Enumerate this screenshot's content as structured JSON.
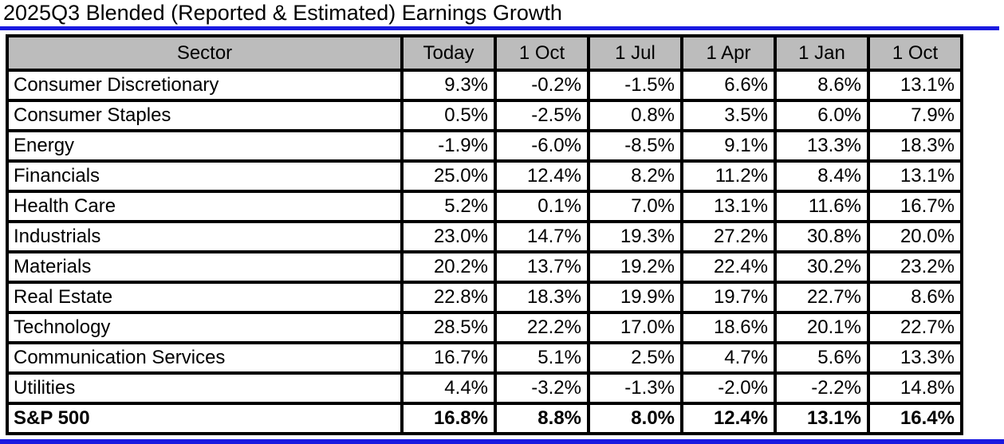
{
  "title": "2025Q3 Blended (Reported & Estimated) Earnings Growth",
  "colors": {
    "accent_blue": "#1a1ae0",
    "header_gray": "#bcbcbc",
    "border_black": "#000000",
    "background": "#ffffff"
  },
  "chart_data": {
    "type": "table",
    "title": "2025Q3 Blended (Reported & Estimated) Earnings Growth",
    "columns": [
      "Sector",
      "Today",
      "1 Oct",
      "1 Jul",
      "1 Apr",
      "1 Jan",
      "1 Oct"
    ],
    "rows": [
      {
        "sector": "Consumer Discretionary",
        "values": [
          "9.3%",
          "-0.2%",
          "-1.5%",
          "6.6%",
          "8.6%",
          "13.1%"
        ],
        "bold": false
      },
      {
        "sector": "Consumer Staples",
        "values": [
          "0.5%",
          "-2.5%",
          "0.8%",
          "3.5%",
          "6.0%",
          "7.9%"
        ],
        "bold": false
      },
      {
        "sector": "Energy",
        "values": [
          "-1.9%",
          "-6.0%",
          "-8.5%",
          "9.1%",
          "13.3%",
          "18.3%"
        ],
        "bold": false
      },
      {
        "sector": "Financials",
        "values": [
          "25.0%",
          "12.4%",
          "8.2%",
          "11.2%",
          "8.4%",
          "13.1%"
        ],
        "bold": false
      },
      {
        "sector": "Health Care",
        "values": [
          "5.2%",
          "0.1%",
          "7.0%",
          "13.1%",
          "11.6%",
          "16.7%"
        ],
        "bold": false
      },
      {
        "sector": "Industrials",
        "values": [
          "23.0%",
          "14.7%",
          "19.3%",
          "27.2%",
          "30.8%",
          "20.0%"
        ],
        "bold": false
      },
      {
        "sector": "Materials",
        "values": [
          "20.2%",
          "13.7%",
          "19.2%",
          "22.4%",
          "30.2%",
          "23.2%"
        ],
        "bold": false
      },
      {
        "sector": "Real Estate",
        "values": [
          "22.8%",
          "18.3%",
          "19.9%",
          "19.7%",
          "22.7%",
          "8.6%"
        ],
        "bold": false
      },
      {
        "sector": "Technology",
        "values": [
          "28.5%",
          "22.2%",
          "17.0%",
          "18.6%",
          "20.1%",
          "22.7%"
        ],
        "bold": false
      },
      {
        "sector": "Communication Services",
        "values": [
          "16.7%",
          "5.1%",
          "2.5%",
          "4.7%",
          "5.6%",
          "13.3%"
        ],
        "bold": false
      },
      {
        "sector": "Utilities",
        "values": [
          "4.4%",
          "-3.2%",
          "-1.3%",
          "-2.0%",
          "-2.2%",
          "14.8%"
        ],
        "bold": false
      },
      {
        "sector": "S&P 500",
        "values": [
          "16.8%",
          "8.8%",
          "8.0%",
          "12.4%",
          "13.1%",
          "16.4%"
        ],
        "bold": true
      }
    ]
  }
}
